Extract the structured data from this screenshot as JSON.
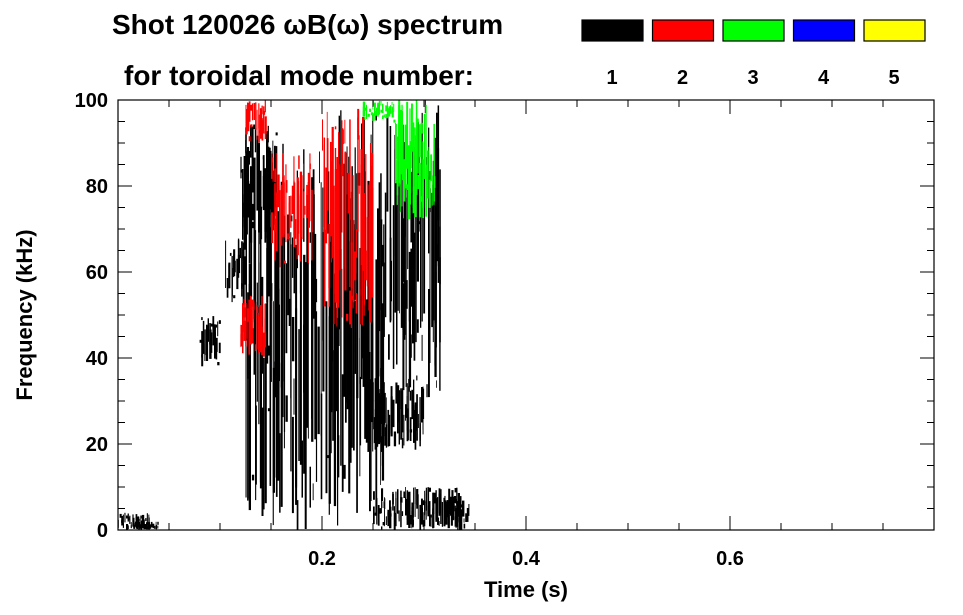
{
  "title_line1": "Shot 120026 ωB(ω) spectrum",
  "title_line2": "for toroidal mode number:",
  "legend": [
    {
      "label": "1",
      "color": "#000000"
    },
    {
      "label": "2",
      "color": "#ff0000"
    },
    {
      "label": "3",
      "color": "#00ff00"
    },
    {
      "label": "4",
      "color": "#0000ff"
    },
    {
      "label": "5",
      "color": "#ffff00"
    }
  ],
  "chart_data": {
    "type": "heatmap",
    "title": "Shot 120026 ωB(ω) spectrum",
    "xlabel": "Time (s)",
    "ylabel": "Frequency (kHz)",
    "xlim": [
      0.0,
      0.8
    ],
    "ylim": [
      0,
      100
    ],
    "x_ticks": [
      0.2,
      0.4,
      0.6
    ],
    "x_tick_labels": [
      "0.2",
      "0.4",
      "0.6"
    ],
    "y_ticks": [
      0,
      20,
      40,
      60,
      80,
      100
    ],
    "y_tick_labels": [
      "0",
      "20",
      "40",
      "60",
      "80",
      "100"
    ],
    "grid": false,
    "legend_position": "top-right",
    "series": [
      {
        "name": "1",
        "color": "#000000",
        "regions": [
          {
            "t": [
              0.0,
              0.03
            ],
            "f": [
              0,
              4
            ]
          },
          {
            "t": [
              0.015,
              0.04
            ],
            "f": [
              0,
              2
            ]
          },
          {
            "t": [
              0.08,
              0.1
            ],
            "f": [
              38,
              50
            ]
          },
          {
            "t": [
              0.105,
              0.125
            ],
            "f": [
              52,
              68
            ]
          },
          {
            "t": [
              0.12,
              0.155
            ],
            "f": [
              65,
              95
            ]
          },
          {
            "t": [
              0.125,
              0.21
            ],
            "f": [
              0,
              90
            ]
          },
          {
            "t": [
              0.21,
              0.26
            ],
            "f": [
              0,
              98
            ]
          },
          {
            "t": [
              0.25,
              0.3
            ],
            "f": [
              18,
              36
            ]
          },
          {
            "t": [
              0.25,
              0.335
            ],
            "f": [
              0,
              10
            ]
          },
          {
            "t": [
              0.26,
              0.315
            ],
            "f": [
              30,
              100
            ]
          },
          {
            "t": [
              0.32,
              0.345
            ],
            "f": [
              0,
              8
            ]
          }
        ]
      },
      {
        "name": "2",
        "color": "#ff0000",
        "regions": [
          {
            "t": [
              0.125,
              0.145
            ],
            "f": [
              90,
              100
            ]
          },
          {
            "t": [
              0.15,
              0.19
            ],
            "f": [
              60,
              88
            ]
          },
          {
            "t": [
              0.2,
              0.25
            ],
            "f": [
              45,
              98
            ]
          },
          {
            "t": [
              0.12,
              0.145
            ],
            "f": [
              40,
              55
            ]
          }
        ]
      },
      {
        "name": "3",
        "color": "#00ff00",
        "regions": [
          {
            "t": [
              0.24,
              0.27
            ],
            "f": [
              95,
              100
            ]
          },
          {
            "t": [
              0.27,
              0.31
            ],
            "f": [
              72,
              100
            ]
          }
        ]
      },
      {
        "name": "4",
        "color": "#0000ff",
        "regions": []
      },
      {
        "name": "5",
        "color": "#ffff00",
        "regions": []
      }
    ]
  }
}
